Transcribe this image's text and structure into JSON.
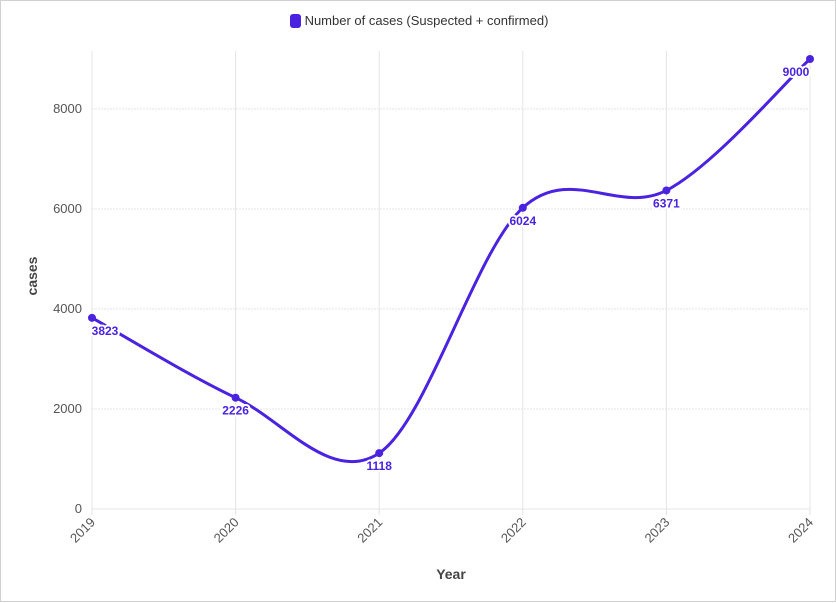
{
  "chart_data": {
    "type": "line",
    "title": "",
    "xlabel": "Year",
    "ylabel": "cases",
    "x": [
      "2019",
      "2020",
      "2021",
      "2022",
      "2023",
      "2024"
    ],
    "series": [
      {
        "name": "Number of cases (Suspected + confirmed)",
        "values": [
          3823,
          2226,
          1118,
          6024,
          6371,
          9000
        ],
        "color": "#4a22e0"
      }
    ],
    "ylim": [
      0,
      9000
    ],
    "yticks": [
      "0",
      "2000",
      "4000",
      "6000",
      "8000"
    ],
    "grid": true,
    "legend_position": "top-center",
    "smooth": true,
    "data_labels": [
      "3823",
      "2226",
      "1118",
      "6024",
      "6371",
      "9000"
    ]
  }
}
